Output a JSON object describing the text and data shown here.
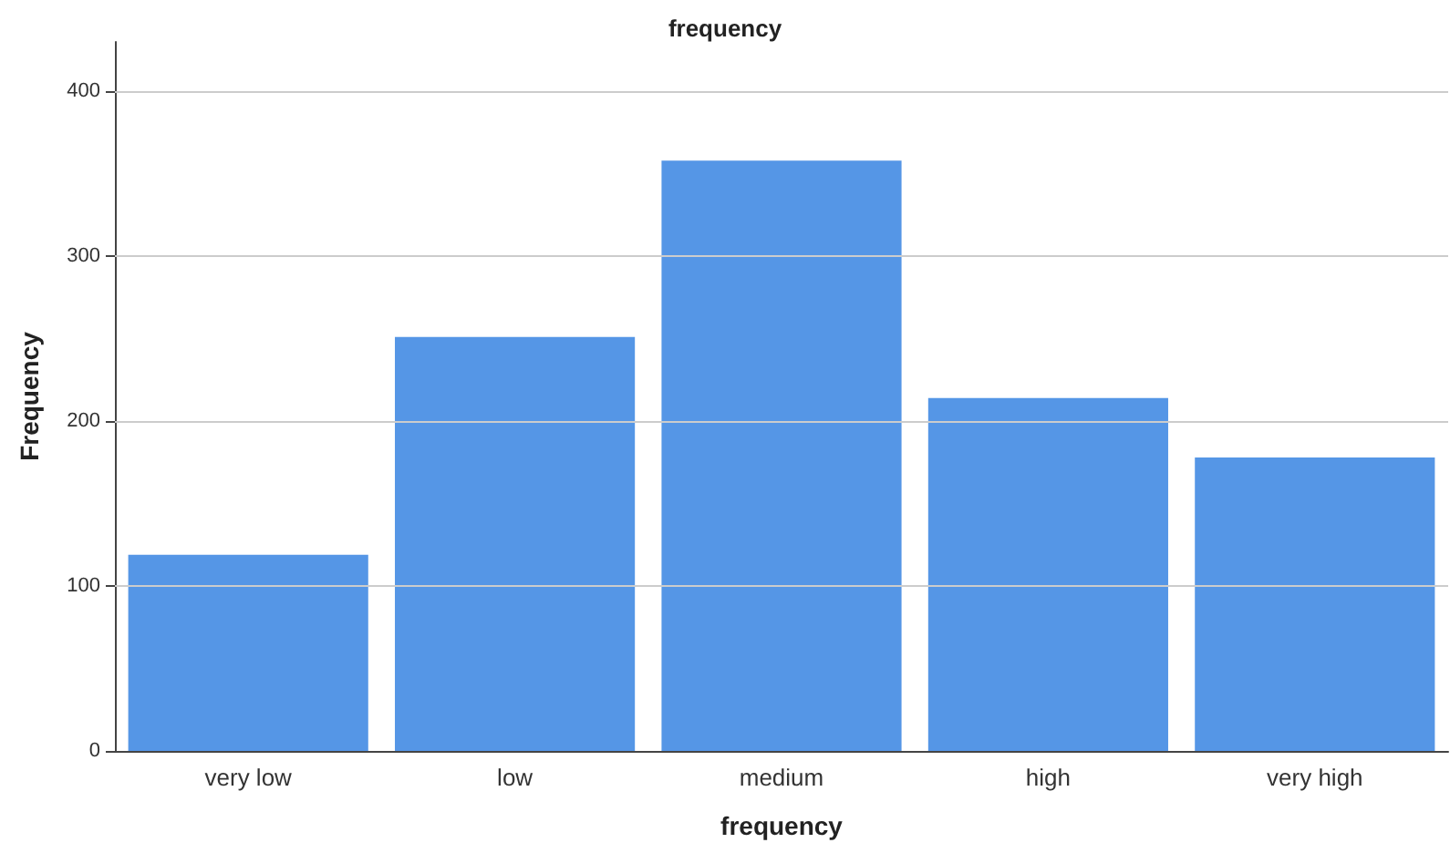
{
  "chart_data": {
    "type": "bar",
    "title": "frequency",
    "xlabel": "frequency",
    "ylabel": "Frequency",
    "categories": [
      "very low",
      "low",
      "medium",
      "high",
      "very high"
    ],
    "values": [
      119,
      251,
      358,
      214,
      178
    ],
    "color": "#5596e6",
    "ylim": [
      0,
      430
    ],
    "yticks": [
      0,
      100,
      200,
      300,
      400
    ],
    "grid": "y"
  }
}
